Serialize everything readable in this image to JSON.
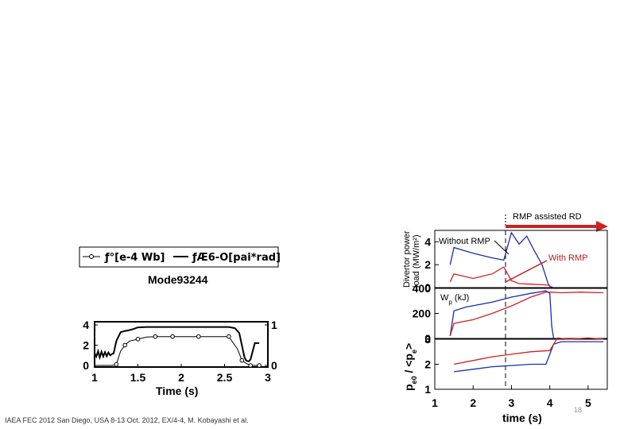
{
  "footer": "IAEA FEC 2012 San Diego, USA 8-13 Oct. 2012, EX/4-4, M. Kobayashi et al.",
  "page_number": "18",
  "colors": {
    "red": "#d42020",
    "blue": "#1a2db0",
    "arrow": "#cc2222",
    "black": "#000000"
  },
  "chart_data": [
    {
      "type": "line",
      "title": "Mode93244",
      "xlabel": "Time (s)",
      "ylabel": "",
      "xlim": [
        1,
        3
      ],
      "ylim_left": [
        0,
        4
      ],
      "ylim_right": [
        0,
        1
      ],
      "x_ticks": [
        "1",
        "1.5",
        "2",
        "2.5",
        "3"
      ],
      "y_ticks_left": [
        "0",
        "2",
        "4"
      ],
      "y_ticks_right": [
        "0",
        "1"
      ],
      "legend": [
        "ƒ°[e-4 Wb]",
        "ƒÆ6-O[pai*rad]"
      ],
      "series": [
        {
          "name": "ƒ°[e-4 Wb]",
          "marker": "circle",
          "axis": "left",
          "x": [
            1.0,
            1.2,
            1.25,
            1.3,
            1.35,
            1.4,
            1.5,
            1.6,
            1.7,
            1.8,
            1.9,
            2.0,
            2.2,
            2.4,
            2.55,
            2.65,
            2.7,
            2.75,
            2.8,
            2.85,
            2.9
          ],
          "y": [
            0.0,
            0.0,
            0.1,
            1.4,
            2.0,
            2.4,
            2.6,
            2.8,
            2.85,
            2.85,
            2.85,
            2.85,
            2.85,
            2.85,
            2.85,
            1.6,
            0.5,
            0.2,
            0.0,
            0.0,
            0.0
          ]
        },
        {
          "name": "ƒÆ6-O[pai*rad]",
          "axis": "right",
          "x": [
            1.0,
            1.02,
            1.04,
            1.06,
            1.08,
            1.1,
            1.12,
            1.14,
            1.16,
            1.18,
            1.2,
            1.22,
            1.25,
            1.3,
            1.35,
            1.4,
            1.45,
            1.5,
            1.6,
            1.8,
            2.0,
            2.2,
            2.4,
            2.55,
            2.62,
            2.67,
            2.7,
            2.73,
            2.75,
            2.78,
            2.8,
            2.85,
            2.9
          ],
          "y": [
            0.3,
            0.22,
            0.35,
            0.2,
            0.34,
            0.22,
            0.33,
            0.23,
            0.32,
            0.25,
            0.28,
            0.3,
            0.6,
            0.82,
            0.85,
            0.87,
            0.9,
            0.94,
            0.95,
            0.95,
            0.95,
            0.95,
            0.95,
            0.95,
            0.92,
            0.8,
            0.5,
            0.2,
            0.12,
            0.1,
            0.15,
            0.55,
            0.55
          ]
        }
      ]
    },
    {
      "type": "line",
      "title": "",
      "xlabel": "time (s)",
      "ylabel": "Divertor power load (MW/m²)",
      "xlim": [
        1,
        5.5
      ],
      "ylim": [
        0,
        5
      ],
      "x_ticks": [
        "1",
        "2",
        "3",
        "4",
        "5"
      ],
      "y_ticks": [
        "0",
        "2",
        "4"
      ],
      "annotations": [
        "Without RMP",
        "With RMP",
        "RMP assisted RD"
      ],
      "series": [
        {
          "name": "Without RMP",
          "color": "blue",
          "x": [
            1.4,
            1.5,
            2.0,
            2.5,
            2.8,
            3.0,
            3.2,
            3.4,
            3.6,
            3.8,
            3.95,
            4.0,
            4.1
          ],
          "y": [
            2.0,
            3.5,
            3.0,
            2.6,
            2.4,
            4.8,
            3.8,
            4.5,
            3.2,
            2.0,
            0.4,
            0.1,
            0.0
          ]
        },
        {
          "name": "With RMP",
          "color": "red",
          "x": [
            1.4,
            1.5,
            2.0,
            2.5,
            2.8,
            3.0,
            3.2,
            3.5,
            3.8,
            4.0
          ],
          "y": [
            0.5,
            1.2,
            0.8,
            1.2,
            1.8,
            0.6,
            0.35,
            0.3,
            0.25,
            0.2
          ]
        }
      ]
    },
    {
      "type": "line",
      "title": "",
      "xlabel": "",
      "ylabel": "Wp (kJ)",
      "xlim": [
        1,
        5.5
      ],
      "ylim": [
        0,
        400
      ],
      "y_ticks": [
        "0",
        "200",
        "400"
      ],
      "series": [
        {
          "name": "Without RMP",
          "color": "blue",
          "x": [
            1.4,
            1.5,
            1.8,
            2.5,
            3.0,
            3.5,
            3.9,
            4.0,
            4.05,
            4.1
          ],
          "y": [
            20,
            220,
            250,
            290,
            330,
            360,
            380,
            360,
            100,
            0
          ]
        },
        {
          "name": "With RMP",
          "color": "red",
          "x": [
            1.4,
            1.5,
            2.0,
            2.5,
            3.0,
            3.5,
            3.9,
            4.0,
            4.3,
            4.8,
            5.4
          ],
          "y": [
            20,
            120,
            150,
            200,
            260,
            330,
            370,
            370,
            365,
            370,
            365
          ]
        }
      ]
    },
    {
      "type": "line",
      "title": "",
      "xlabel": "",
      "ylabel": "pe0 / <pe>",
      "xlim": [
        1,
        5.5
      ],
      "ylim": [
        1,
        3
      ],
      "y_ticks": [
        "1",
        "2",
        "3"
      ],
      "series": [
        {
          "name": "Without RMP",
          "color": "blue",
          "x": [
            1.5,
            2.0,
            2.5,
            3.0,
            3.5,
            3.9,
            4.1,
            4.3,
            4.8,
            5.4
          ],
          "y": [
            1.7,
            1.8,
            1.9,
            1.95,
            2.0,
            2.0,
            2.8,
            2.9,
            2.9,
            2.9
          ]
        },
        {
          "name": "With RMP",
          "color": "red",
          "x": [
            1.5,
            2.0,
            2.5,
            3.0,
            3.5,
            4.0,
            4.2,
            4.5,
            5.0,
            5.4
          ],
          "y": [
            2.0,
            2.15,
            2.3,
            2.4,
            2.5,
            2.55,
            3.05,
            3.0,
            3.05,
            3.0
          ]
        }
      ]
    }
  ],
  "text": {
    "mode": "Mode93244",
    "legend1": "ƒ°[e-4 Wb]",
    "legend2": "ƒÆ6-O[pai*rad]",
    "time_label": "Time (s)",
    "time_label2": "time (s)",
    "divertor_line1": "Divertor power",
    "divertor_line2": "load (MW/m²)",
    "wp": "Wp (kJ)",
    "ratio": "pe0 / <pe>",
    "without": "Without RMP",
    "with": "With RMP",
    "rd": "RMP assisted RD"
  }
}
